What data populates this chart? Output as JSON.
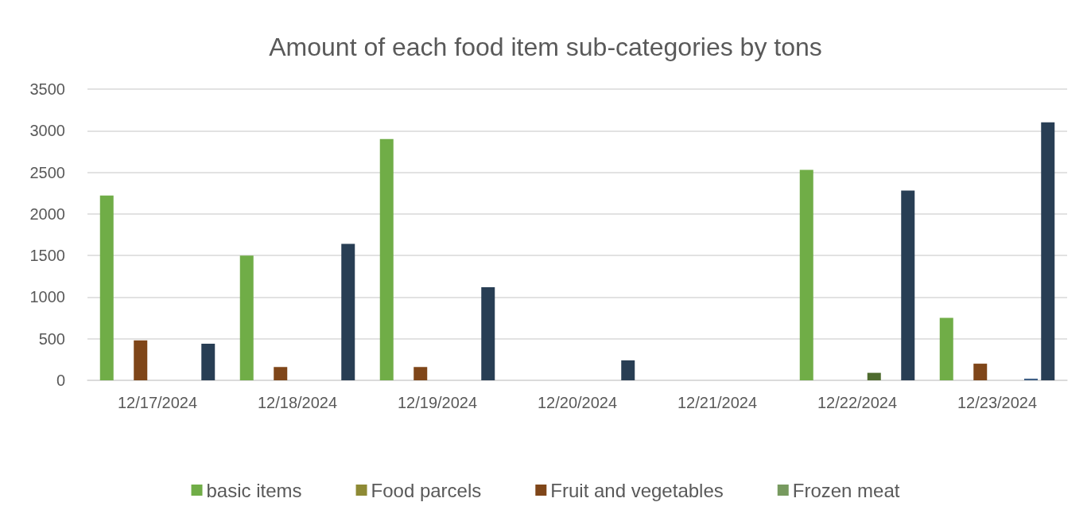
{
  "chart_data": {
    "type": "bar",
    "title": "Amount of each food item sub-categories by tons",
    "categories": [
      "12/17/2024",
      "12/18/2024",
      "12/19/2024",
      "12/20/2024",
      "12/21/2024",
      "12/22/2024",
      "12/23/2024"
    ],
    "series": [
      {
        "name": "basic items",
        "color": "#70ad47",
        "values": [
          2220,
          1500,
          2900,
          0,
          0,
          2530,
          750
        ]
      },
      {
        "name": "Food parcels",
        "color": "#8e8a35",
        "values": [
          0,
          0,
          0,
          0,
          0,
          0,
          0
        ]
      },
      {
        "name": "Fruit and vegetables",
        "color": "#7f4619",
        "values": [
          480,
          160,
          160,
          0,
          0,
          0,
          200
        ]
      },
      {
        "name": "Frozen meat",
        "color": "#779a5f",
        "values": [
          0,
          0,
          0,
          0,
          0,
          0,
          0
        ]
      },
      {
        "color": "#4e6b2e",
        "values": [
          0,
          0,
          0,
          0,
          0,
          90,
          0
        ]
      },
      {
        "color": "#3f5f86",
        "values": [
          0,
          0,
          0,
          0,
          0,
          0,
          20
        ]
      },
      {
        "color": "#283e54",
        "values": [
          440,
          1640,
          1120,
          240,
          0,
          2280,
          3100
        ]
      }
    ],
    "ylim": [
      0,
      3500
    ],
    "yticks": [
      0,
      500,
      1000,
      1500,
      2000,
      2500,
      3000,
      3500
    ],
    "grid": "y",
    "legend": "bottom"
  }
}
